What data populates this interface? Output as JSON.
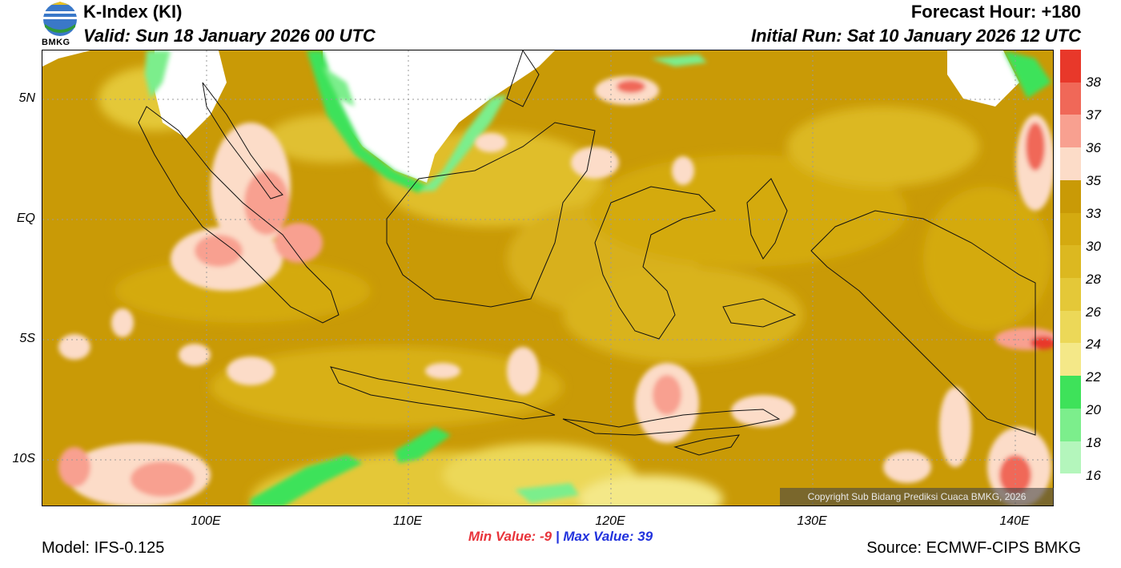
{
  "header": {
    "title": "K-Index (KI)",
    "valid": "Valid: Sun 18 January 2026 00 UTC",
    "forecast_hour": "Forecast Hour: +180",
    "initial_run": "Initial Run: Sat 10 January 2026 12 UTC",
    "logo_text": "BMKG"
  },
  "map": {
    "lat_labels": [
      "5N",
      "EQ",
      "5S",
      "10S"
    ],
    "lon_labels": [
      "100E",
      "110E",
      "120E",
      "130E",
      "140E"
    ],
    "copyright": "Copyright Sub Bidang Prediksi Cuaca BMKG, 2026"
  },
  "colorbar": {
    "labels": [
      "38",
      "37",
      "36",
      "35",
      "33",
      "30",
      "28",
      "26",
      "24",
      "22",
      "20",
      "18",
      "16"
    ],
    "colors": [
      "#e8382a",
      "#f06858",
      "#f8a090",
      "#fcdcc8",
      "#c99a06",
      "#d4aa10",
      "#dcb820",
      "#e4c838",
      "#ecd858",
      "#f4e888",
      "#3ee25a",
      "#7cee8c",
      "#b4f6bc",
      "#ffffff"
    ]
  },
  "stats": {
    "min_label": "Min Value:",
    "min_value": "-9",
    "sep": "|",
    "max_label": "Max Value:",
    "max_value": "39"
  },
  "footer": {
    "model": "Model: IFS-0.125",
    "source": "Source: ECMWF-CIPS BMKG"
  }
}
